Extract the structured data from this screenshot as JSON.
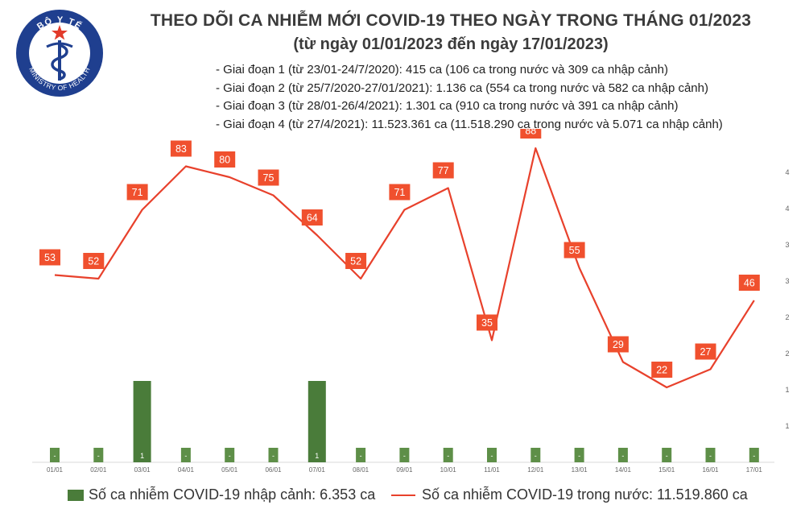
{
  "header": {
    "logo_text_top": "BỘ Y TẾ",
    "logo_text_bottom": "MINISTRY OF HEALTH",
    "title": "THEO DÕI CA NHIỄM MỚI COVID-19 THEO NGÀY TRONG THÁNG 01/2023",
    "subtitle": "(từ ngày 01/01/2023 đến ngày 17/01/2023)"
  },
  "notes": [
    "- Giai đoạn 1 (từ 23/01-24/7/2020): 415 ca (106 ca trong nước và 309 ca nhập cảnh)",
    "- Giai đoạn 2 (từ 25/7/2020-27/01/2021): 1.136 ca (554 ca trong nước và 582 ca nhập cảnh)",
    "- Giai đoạn 3 (từ 28/01-26/4/2021): 1.301 ca (910 ca trong nước và 391 ca nhập cảnh)",
    "- Giai đoạn 4 (từ 27/4/2021): 11.523.361 ca (11.518.290 ca trong nước và 5.071 ca nhập cảnh)"
  ],
  "colors": {
    "line": "#e8412c",
    "label_bg": "#f0502e",
    "bar": "#4a7c3a",
    "bar_label_bg": "#5e8f48"
  },
  "legend": {
    "bar_label": "Số ca nhiễm COVID-19 nhập cảnh: 6.353 ca",
    "line_label": "Số ca nhiễm COVID-19 trong nước: 11.519.860 ca"
  },
  "chart_data": {
    "type": "bar+line",
    "categories": [
      "01/01",
      "02/01",
      "03/01",
      "04/01",
      "05/01",
      "06/01",
      "07/01",
      "08/01",
      "09/01",
      "10/01",
      "11/01",
      "12/01",
      "13/01",
      "14/01",
      "15/01",
      "16/01",
      "17/01"
    ],
    "series": [
      {
        "name": "Số ca nhiễm COVID-19 nhập cảnh: 6.353 ca",
        "type": "bar",
        "axis": "right",
        "values": [
          0,
          0,
          1,
          0,
          0,
          0,
          1,
          0,
          0,
          0,
          0,
          0,
          0,
          0,
          0,
          0,
          0
        ],
        "labels": [
          "-",
          "-",
          "1",
          "-",
          "-",
          "-",
          "1",
          "-",
          "-",
          "-",
          "-",
          "-",
          "-",
          "-",
          "-",
          "-",
          "-"
        ]
      },
      {
        "name": "Số ca nhiễm COVID-19 trong nước: 11.519.860 ca",
        "type": "line",
        "axis": "hidden",
        "values": [
          53,
          52,
          71,
          83,
          80,
          75,
          64,
          52,
          71,
          77,
          35,
          88,
          55,
          29,
          22,
          27,
          46
        ]
      }
    ],
    "right_axis_ticks": [
      "1",
      "1",
      "2",
      "2",
      "3",
      "3",
      "4",
      "4"
    ],
    "right_axis_tick_values": [
      0.5,
      1,
      1.5,
      2,
      2.5,
      3,
      3.5,
      4
    ],
    "bar_ylim": [
      0,
      4
    ]
  }
}
